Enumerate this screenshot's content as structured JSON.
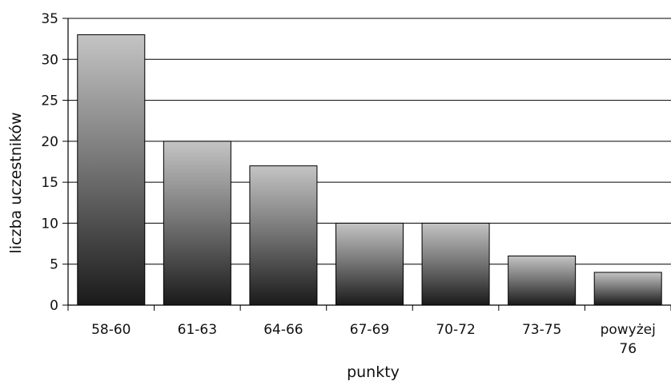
{
  "chart_data": {
    "type": "bar",
    "title": "",
    "xlabel": "punkty",
    "ylabel": "liczba uczestników",
    "categories": [
      [
        "58-60"
      ],
      [
        "61-63"
      ],
      [
        "64-66"
      ],
      [
        "67-69"
      ],
      [
        "70-72"
      ],
      [
        "73-75"
      ],
      [
        "powyżej",
        "76"
      ]
    ],
    "values": [
      33,
      20,
      17,
      10,
      10,
      6,
      4
    ],
    "ylim": [
      0,
      35
    ],
    "yticks": [
      0,
      5,
      10,
      15,
      20,
      25,
      30,
      35
    ],
    "grid": true,
    "legend": "none",
    "colors": {
      "bar_top": "#c4c4c4",
      "bar_bottom": "#1a1a1a",
      "bar_stroke": "#000000",
      "grid": "#000000",
      "axis": "#000000"
    }
  }
}
